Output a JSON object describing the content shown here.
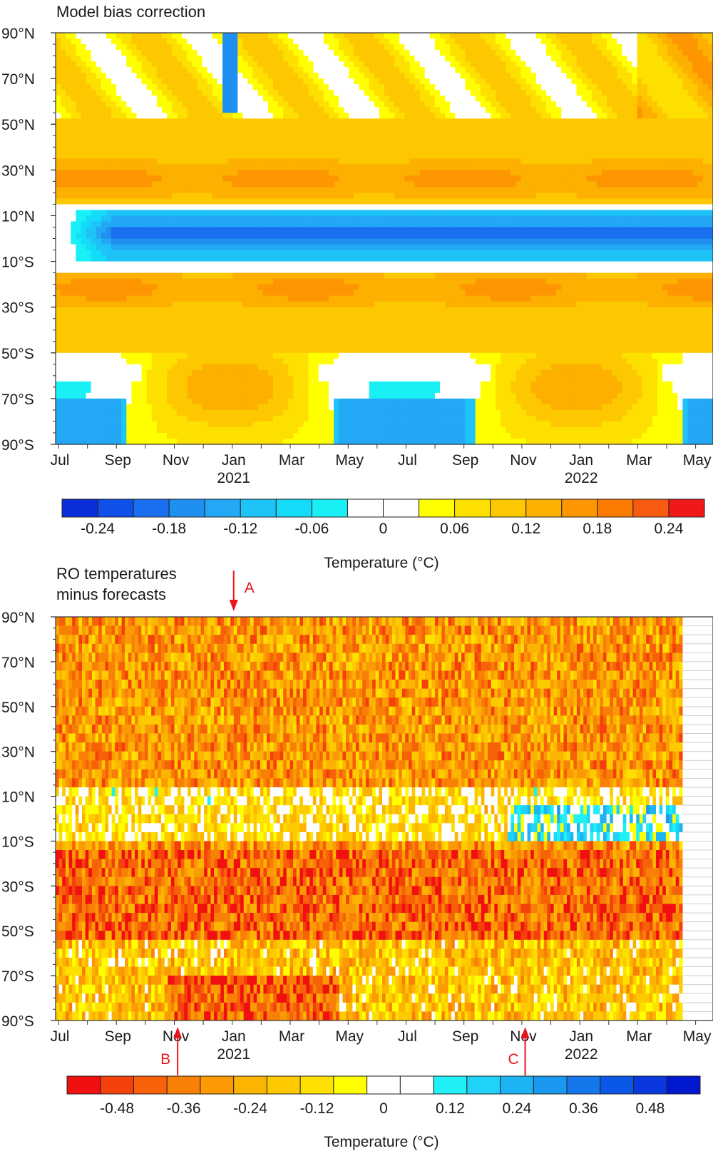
{
  "chart_data": [
    {
      "type": "heatmap",
      "title": "Model bias correction",
      "ylabel_ticks": [
        "90°N",
        "70°N",
        "50°N",
        "30°N",
        "10°N",
        "10°S",
        "30°S",
        "50°S",
        "70°S",
        "90°S"
      ],
      "y_tick_values": [
        90,
        70,
        50,
        30,
        10,
        -10,
        -30,
        -50,
        -70,
        -90
      ],
      "x_tick_labels": [
        "Jul",
        "Sep",
        "Nov",
        "Jan",
        "Mar",
        "May",
        "Jul",
        "Sep",
        "Nov",
        "Jan",
        "Mar",
        "May"
      ],
      "year_labels": [
        {
          "label": "2021",
          "at_tick": 3
        },
        {
          "label": "2022",
          "at_tick": 9
        }
      ],
      "x_range_months": [
        "2020-07",
        "2022-05"
      ],
      "ylim": [
        -90,
        90
      ],
      "colorbar": {
        "label": "Temperature (°C)",
        "tick_labels": [
          "-0.24",
          "-0.18",
          "-0.12",
          "-0.06",
          "0",
          "0.06",
          "0.12",
          "0.18",
          "0.24"
        ],
        "tick_values": [
          -0.24,
          -0.18,
          -0.12,
          -0.06,
          0,
          0.06,
          0.12,
          0.18,
          0.24
        ],
        "colors": [
          "#0a2fd8",
          "#1050e8",
          "#1a6ef0",
          "#1f8ff0",
          "#22a8f5",
          "#1ec3f8",
          "#14dcf8",
          "#18f0f6",
          "#ffffff",
          "#ffffff",
          "#ffff00",
          "#fee000",
          "#fec800",
          "#fdb000",
          "#fd9600",
          "#fc7a00",
          "#f75a10",
          "#f01818"
        ]
      },
      "bands": [
        {
          "lat": [
            90,
            52
          ],
          "value": 0.1,
          "note": "mostly positive, white/blue patches"
        },
        {
          "lat": [
            52,
            14
          ],
          "value": 0.12,
          "peak": 0.18,
          "peak_lat": 26
        },
        {
          "lat": [
            14,
            12
          ],
          "value": 0.02
        },
        {
          "lat": [
            12,
            -10
          ],
          "value": -0.15,
          "peak": -0.2,
          "peak_lat": 2
        },
        {
          "lat": [
            -10,
            -14
          ],
          "value": 0.0
        },
        {
          "lat": [
            -14,
            -50
          ],
          "value": 0.12,
          "peak": 0.18,
          "peak_lat": -22
        },
        {
          "lat": [
            -50,
            -90
          ],
          "value": 0.08,
          "note": "negative around Nov, positive around Jan"
        }
      ]
    },
    {
      "type": "heatmap",
      "title": "RO temperatures minus forecasts",
      "ylabel_ticks": [
        "90°N",
        "70°N",
        "50°N",
        "30°N",
        "10°N",
        "10°S",
        "30°S",
        "50°S",
        "70°S",
        "90°S"
      ],
      "y_tick_values": [
        90,
        70,
        50,
        30,
        10,
        -10,
        -30,
        -50,
        -70,
        -90
      ],
      "x_tick_labels": [
        "Jul",
        "Sep",
        "Nov",
        "Jan",
        "Mar",
        "May",
        "Jul",
        "Sep",
        "Nov",
        "Jan",
        "Mar",
        "May"
      ],
      "year_labels": [
        {
          "label": "2021",
          "at_tick": 3
        },
        {
          "label": "2022",
          "at_tick": 9
        }
      ],
      "x_range_months": [
        "2020-07",
        "2022-05"
      ],
      "ylim": [
        -90,
        90
      ],
      "colorbar": {
        "label": "Temperature (°C)",
        "tick_labels": [
          "-0.48",
          "-0.36",
          "-0.24",
          "-0.12",
          "0",
          "0.12",
          "0.24",
          "0.36",
          "0.48"
        ],
        "tick_values": [
          -0.48,
          -0.36,
          -0.24,
          -0.12,
          0,
          0.12,
          0.24,
          0.36,
          0.48
        ],
        "colors": [
          "#f01010",
          "#f4400a",
          "#f76208",
          "#f98006",
          "#fb9a04",
          "#fcb402",
          "#fdca00",
          "#fee000",
          "#ffff00",
          "#ffffff",
          "#ffffff",
          "#1ef0f6",
          "#1ed2f8",
          "#1cb4f4",
          "#1a98f0",
          "#1478ec",
          "#0c58e6",
          "#0838de",
          "#0018d0"
        ]
      },
      "annotations": [
        {
          "label": "A",
          "month": "2021-01",
          "direction": "down"
        },
        {
          "label": "B",
          "month": "2020-12",
          "direction": "up"
        },
        {
          "label": "C",
          "month": "2021-12",
          "direction": "up"
        }
      ]
    }
  ]
}
